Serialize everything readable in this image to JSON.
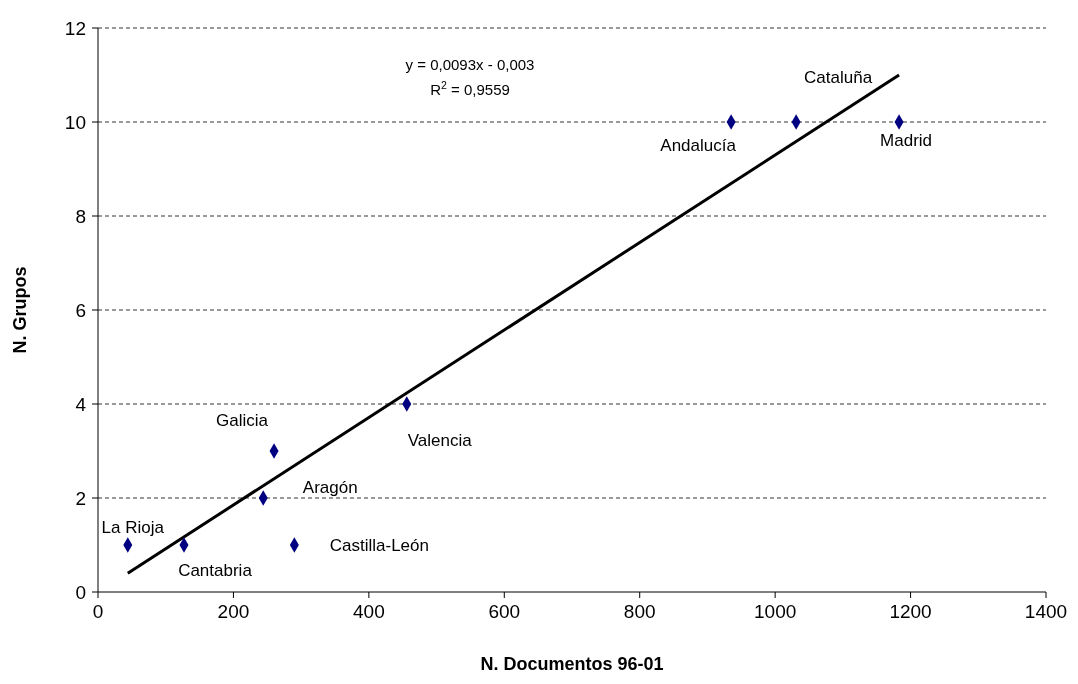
{
  "chart_data": {
    "type": "scatter",
    "xlabel": "N. Documentos 96-01",
    "ylabel": "N. Grupos",
    "xlim": [
      0,
      1400
    ],
    "xticks": [
      0,
      200,
      400,
      600,
      800,
      1000,
      1200,
      1400
    ],
    "ylim": [
      0,
      12
    ],
    "yticks": [
      0,
      2,
      4,
      6,
      8,
      10,
      12
    ],
    "grid": "y",
    "series": [
      {
        "marker": "diamond",
        "color": "#000080",
        "x": [
          44,
          127,
          244,
          260,
          290,
          456,
          935,
          1031,
          1183
        ],
        "values": [
          1,
          1,
          2,
          3,
          1,
          4,
          10,
          10,
          10
        ]
      },
      {
        "type": "line",
        "color": "#000000",
        "x": [
          44,
          1183
        ],
        "values": [
          0.4,
          11.0
        ],
        "line_style": "solid"
      }
    ],
    "annotations": [
      "y = 0,0093x - 0,003",
      "R$^{2}$ = 0,9559",
      {
        "text": "La Rioja",
        "x": 44,
        "y": 1
      },
      {
        "text": "Cantabria",
        "x": 127,
        "y": 1
      },
      {
        "text": "Aragón",
        "x": 244,
        "y": 2
      },
      {
        "text": "Galicia",
        "x": 260,
        "y": 3
      },
      {
        "text": "Castilla-León",
        "x": 290,
        "y": 1
      },
      {
        "text": "Valencia",
        "x": 456,
        "y": 4
      },
      {
        "text": "Andalucía",
        "x": 935,
        "y": 10
      },
      {
        "text": "Cataluña",
        "x": 1031,
        "y": 10
      },
      {
        "text": "Madrid",
        "x": 1183,
        "y": 10
      }
    ]
  }
}
